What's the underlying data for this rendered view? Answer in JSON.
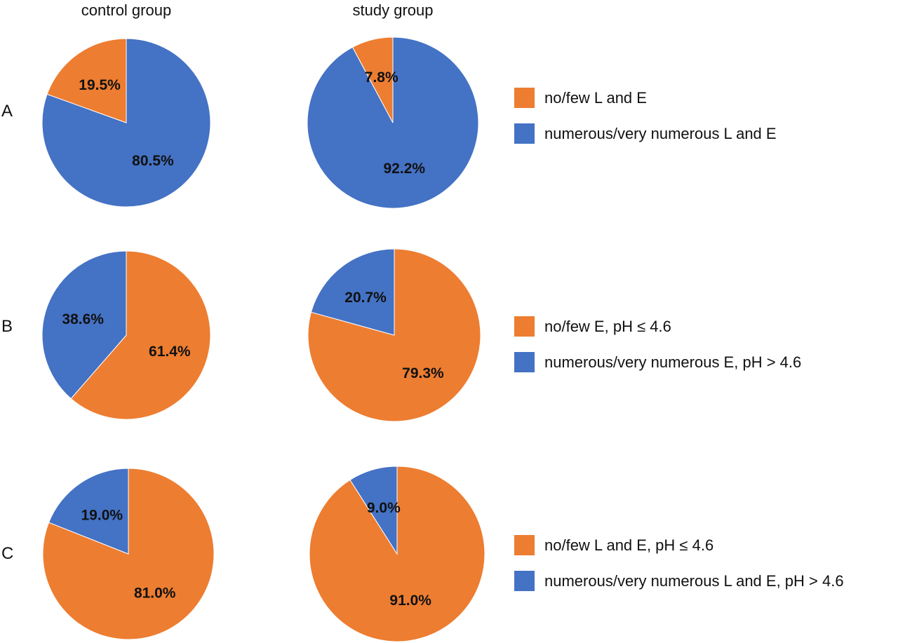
{
  "chart_data": [
    {
      "type": "pie",
      "row": "A",
      "column": "control group",
      "slices": [
        {
          "category": "numerous/very numerous L and E",
          "value": 80.5,
          "label": "80.5%",
          "color": "#4472C4"
        },
        {
          "category": "no/few L and E",
          "value": 19.5,
          "label": "19.5%",
          "color": "#ED7D31"
        }
      ]
    },
    {
      "type": "pie",
      "row": "A",
      "column": "study group",
      "slices": [
        {
          "category": "numerous/very numerous L and E",
          "value": 92.2,
          "label": "92.2%",
          "color": "#4472C4"
        },
        {
          "category": "no/few L and E",
          "value": 7.8,
          "label": "7.8%",
          "color": "#ED7D31"
        }
      ]
    },
    {
      "type": "pie",
      "row": "B",
      "column": "control group",
      "slices": [
        {
          "category": "no/few E, pH ≤ 4.6",
          "value": 61.4,
          "label": "61.4%",
          "color": "#ED7D31"
        },
        {
          "category": "numerous/very numerous E, pH > 4.6",
          "value": 38.6,
          "label": "38.6%",
          "color": "#4472C4"
        }
      ]
    },
    {
      "type": "pie",
      "row": "B",
      "column": "study group",
      "slices": [
        {
          "category": "no/few E, pH ≤ 4.6",
          "value": 79.3,
          "label": "79.3%",
          "color": "#ED7D31"
        },
        {
          "category": "numerous/very numerous E, pH > 4.6",
          "value": 20.7,
          "label": "20.7%",
          "color": "#4472C4"
        }
      ]
    },
    {
      "type": "pie",
      "row": "C",
      "column": "control group",
      "slices": [
        {
          "category": "no/few L and E, pH ≤ 4.6",
          "value": 81.0,
          "label": "81.0%",
          "color": "#ED7D31"
        },
        {
          "category": "numerous/very numerous L and E, pH > 4.6",
          "value": 19.0,
          "label": "19.0%",
          "color": "#4472C4"
        }
      ]
    },
    {
      "type": "pie",
      "row": "C",
      "column": "study group",
      "slices": [
        {
          "category": "no/few L and E, pH ≤ 4.6",
          "value": 91.0,
          "label": "91.0%",
          "color": "#ED7D31"
        },
        {
          "category": "numerous/very numerous L and E, pH > 4.6",
          "value": 9.0,
          "label": "9.0%",
          "color": "#4472C4"
        }
      ]
    }
  ],
  "columns": [
    "control group",
    "study group"
  ],
  "rows": [
    "A",
    "B",
    "C"
  ],
  "legends": [
    [
      {
        "label": "no/few L and E",
        "color": "#ED7D31"
      },
      {
        "label": "numerous/very numerous L and E",
        "color": "#4472C4"
      }
    ],
    [
      {
        "label": "no/few E, pH ≤ 4.6",
        "color": "#ED7D31"
      },
      {
        "label": "numerous/very numerous E, pH > 4.6",
        "color": "#4472C4"
      }
    ],
    [
      {
        "label": "no/few L and E, pH ≤ 4.6",
        "color": "#ED7D31"
      },
      {
        "label": "numerous/very numerous L and E, pH > 4.6",
        "color": "#4472C4"
      }
    ]
  ]
}
